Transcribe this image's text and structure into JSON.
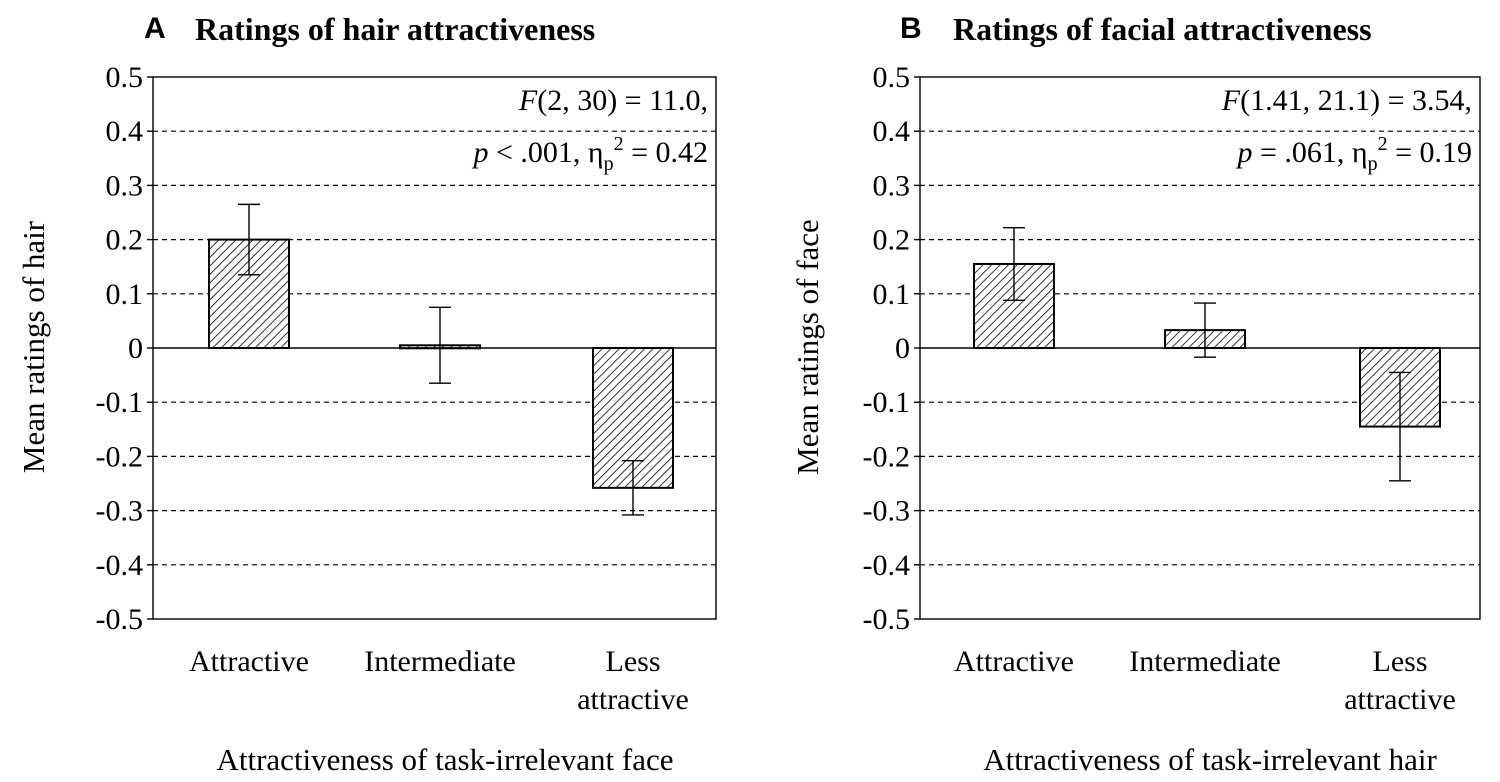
{
  "chart_data": [
    {
      "type": "bar",
      "panel_label": "A",
      "title": "Ratings of hair attractiveness",
      "ylabel": "Mean ratings of hair",
      "xlabel": "Attractiveness of task-irrelevant face",
      "categories": [
        [
          "Attractive"
        ],
        [
          "Intermediate"
        ],
        [
          "Less",
          "attractive"
        ]
      ],
      "values": [
        0.2,
        0.005,
        -0.258
      ],
      "errors": [
        0.065,
        0.07,
        0.05
      ],
      "ylim": [
        -0.5,
        0.5
      ],
      "yticks": [
        "0.5",
        "0.4",
        "0.3",
        "0.2",
        "0.1",
        "0",
        "-0.1",
        "-0.2",
        "-0.3",
        "-0.4",
        "-0.5"
      ],
      "ytick_values": [
        0.5,
        0.4,
        0.3,
        0.2,
        0.1,
        0,
        -0.1,
        -0.2,
        -0.3,
        -0.4,
        -0.5
      ],
      "grid": "dashed horizontal",
      "annotation": {
        "line1": {
          "italic": "F",
          "text": "(2, 30) = 11.0,"
        },
        "line2": {
          "italic": "p",
          "text": " < .001, η",
          "sub": "p",
          "sup": "2",
          "tail": " = 0.42"
        }
      }
    },
    {
      "type": "bar",
      "panel_label": "B",
      "title": "Ratings of facial attractiveness",
      "ylabel": "Mean ratings of face",
      "xlabel": "Attractiveness of task-irrelevant hair",
      "categories": [
        [
          "Attractive"
        ],
        [
          "Intermediate"
        ],
        [
          "Less",
          "attractive"
        ]
      ],
      "values": [
        0.155,
        0.033,
        -0.145
      ],
      "errors": [
        0.067,
        0.05,
        0.1
      ],
      "ylim": [
        -0.5,
        0.5
      ],
      "yticks": [
        "0.5",
        "0.4",
        "0.3",
        "0.2",
        "0.1",
        "0",
        "-0.1",
        "-0.2",
        "-0.3",
        "-0.4",
        "-0.5"
      ],
      "ytick_values": [
        0.5,
        0.4,
        0.3,
        0.2,
        0.1,
        0,
        -0.1,
        -0.2,
        -0.3,
        -0.4,
        -0.5
      ],
      "grid": "dashed horizontal",
      "annotation": {
        "line1": {
          "italic": "F",
          "text": "(1.41, 21.1) = 3.54,"
        },
        "line2": {
          "italic": "p",
          "text": " = .061, η",
          "sub": "p",
          "sup": "2",
          "tail": " = 0.19"
        }
      }
    }
  ]
}
